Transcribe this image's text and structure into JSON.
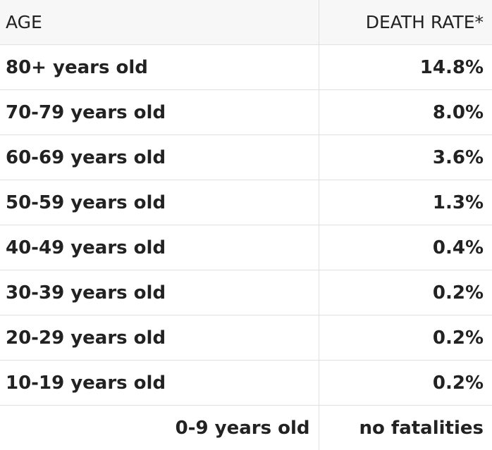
{
  "table": {
    "headers": [
      "AGE",
      "DEATH RATE*"
    ],
    "rows": [
      {
        "age": "80+ years old",
        "rate": "14.8%"
      },
      {
        "age": "70-79 years old",
        "rate": "8.0%"
      },
      {
        "age": "60-69 years old",
        "rate": "3.6%"
      },
      {
        "age": "50-59 years old",
        "rate": "1.3%"
      },
      {
        "age": "40-49 years old",
        "rate": "0.4%"
      },
      {
        "age": "30-39 years old",
        "rate": "0.2%"
      },
      {
        "age": "20-29 years old",
        "rate": "0.2%"
      },
      {
        "age": "10-19 years old",
        "rate": "0.2%"
      },
      {
        "age": "0-9 years old",
        "rate": "no fatalities"
      }
    ]
  }
}
